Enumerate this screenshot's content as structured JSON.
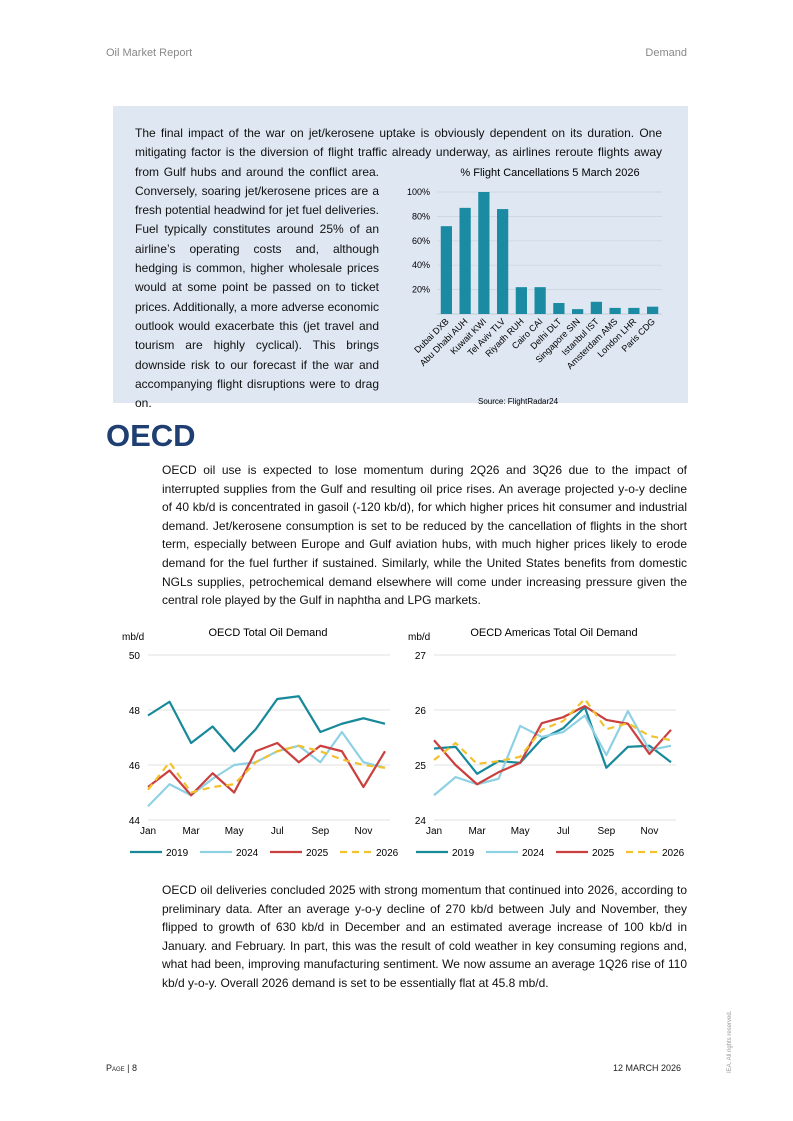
{
  "header": {
    "left": "Oil Market Report",
    "right": "Demand"
  },
  "box": {
    "text": "The final impact of the war on jet/kerosene uptake is obviously dependent on its duration. One mitigating factor is the diversion of flight traffic already underway, as airlines reroute flights away from Gulf hubs and around the conflict area. Conversely, soaring jet/kerosene prices are a fresh potential headwind for jet fuel deliveries. Fuel typically constitutes around 25% of an airline’s operating costs and, although hedging is common, higher wholesale prices would at some point be passed on to ticket prices. Additionally, a more adverse economic outlook would exacerbate this (jet travel and tourism are highly cyclical). This brings downside risk to our forecast if the war and accompanying flight disruptions were to drag on."
  },
  "section": {
    "title": "OECD",
    "paragraphs": [
      "OECD oil use is expected to lose momentum during 2Q26 and 3Q26 due to the impact of interrupted supplies from the Gulf and resulting oil price rises. An average projected y-o-y decline of 40 kb/d is concentrated in gasoil (-120 kb/d), for which higher prices hit consumer and industrial demand. Jet/kerosene consumption is set to be reduced by the cancellation of flights in the short term, especially between Europe and Gulf aviation hubs, with much higher prices likely to erode demand for the fuel further if sustained. Similarly, while the United States benefits from domestic NGLs supplies, petrochemical demand elsewhere will come under increasing pressure given the central role played by the Gulf in naphtha and LPG markets.",
      "OECD oil deliveries concluded 2025 with strong momentum that continued into 2026, according to preliminary data. After an average y-o-y decline of 270 kb/d between July and November, they flipped to growth of 630 kb/d in December and an estimated average increase of 100 kb/d in January. and February. In part, this was the result of cold weather in key consuming regions and, what had been, improving manufacturing sentiment. We now assume an average 1Q26 rise of 110 kb/d y-o-y. Overall 2026 demand is set to be essentially flat at 45.8 mb/d."
    ]
  },
  "chart_data": [
    {
      "type": "bar",
      "title": "% Flight Cancellations 5 March 2026",
      "source": "Source: FlightRadar24",
      "categories": [
        "Dubai DXB",
        "Abu Dhabi AUH",
        "Kuwait KWI",
        "Tel Aviv TLV",
        "Riyadh RUH",
        "Cairo CAI",
        "Delhi DLT",
        "Singapore SIN",
        "Istanbul IST",
        "Amsterdam AMS",
        "London LHR",
        "Paris CDG"
      ],
      "values": [
        72,
        87,
        100,
        86,
        22,
        22,
        9,
        4,
        10,
        5,
        5,
        6
      ],
      "color": "#1a8ba3",
      "ylim": [
        0,
        100
      ],
      "yticks": [
        {
          "value": 20,
          "label": "20%"
        },
        {
          "value": 40,
          "label": "40%"
        },
        {
          "value": 60,
          "label": "60%"
        },
        {
          "value": 80,
          "label": "80%"
        },
        {
          "value": 100,
          "label": "100%"
        }
      ],
      "grid": true
    },
    {
      "type": "line",
      "title": "OECD Total Oil Demand",
      "ylabel": "mb/d",
      "categories": [
        "Jan",
        null,
        "Mar",
        null,
        "May",
        null,
        "Jul",
        null,
        "Sep",
        null,
        "Nov",
        null
      ],
      "ylim": [
        44,
        50
      ],
      "yticks": [
        44,
        46,
        48,
        50
      ],
      "grid": true,
      "series": [
        {
          "name": "2019",
          "color": "#17899a",
          "style": "solid",
          "values": [
            47.8,
            48.3,
            46.8,
            47.4,
            46.5,
            47.3,
            48.4,
            48.5,
            47.2,
            47.5,
            47.7,
            47.5
          ]
        },
        {
          "name": "2024",
          "color": "#8fd1e4",
          "style": "solid",
          "values": [
            44.5,
            45.3,
            44.9,
            45.5,
            46.0,
            46.1,
            46.5,
            46.7,
            46.1,
            47.2,
            46.1,
            45.9
          ]
        },
        {
          "name": "2025",
          "color": "#c9403f",
          "style": "solid",
          "values": [
            45.2,
            45.8,
            44.9,
            45.7,
            45.0,
            46.5,
            46.8,
            46.1,
            46.7,
            46.5,
            45.2,
            46.5
          ]
        },
        {
          "name": "2026",
          "color": "#f2c22e",
          "style": "dashed",
          "values": [
            45.1,
            46.1,
            45.0,
            45.2,
            45.3,
            46.1,
            46.5,
            46.7,
            46.5,
            46.2,
            46.0,
            45.9
          ]
        }
      ]
    },
    {
      "type": "line",
      "title": "OECD Americas Total Oil Demand",
      "ylabel": "mb/d",
      "categories": [
        "Jan",
        null,
        "Mar",
        null,
        "May",
        null,
        "Jul",
        null,
        "Sep",
        null,
        "Nov",
        null
      ],
      "ylim": [
        24,
        27
      ],
      "yticks": [
        24,
        25,
        26,
        27
      ],
      "grid": true,
      "series": [
        {
          "name": "2019",
          "color": "#17899a",
          "style": "solid",
          "values": [
            25.3,
            25.33,
            24.84,
            25.07,
            25.04,
            25.47,
            25.67,
            26.05,
            24.95,
            25.33,
            25.35,
            25.05
          ]
        },
        {
          "name": "2024",
          "color": "#8fd1e4",
          "style": "solid",
          "values": [
            24.45,
            24.78,
            24.65,
            24.75,
            25.71,
            25.51,
            25.6,
            25.9,
            25.18,
            25.98,
            25.27,
            25.35
          ]
        },
        {
          "name": "2025",
          "color": "#c9403f",
          "style": "solid",
          "values": [
            25.45,
            25.0,
            24.65,
            24.87,
            25.04,
            25.76,
            25.87,
            26.07,
            25.82,
            25.75,
            25.2,
            25.64
          ]
        },
        {
          "name": "2026",
          "color": "#f2c22e",
          "style": "dashed",
          "values": [
            25.09,
            25.4,
            25.02,
            25.07,
            25.15,
            25.64,
            25.8,
            26.2,
            25.65,
            25.76,
            25.53,
            25.45
          ]
        }
      ]
    }
  ],
  "footer": {
    "page": "Page | 8",
    "date": "12 MARCH 2026",
    "rights": "IEA. All rights reserved."
  }
}
